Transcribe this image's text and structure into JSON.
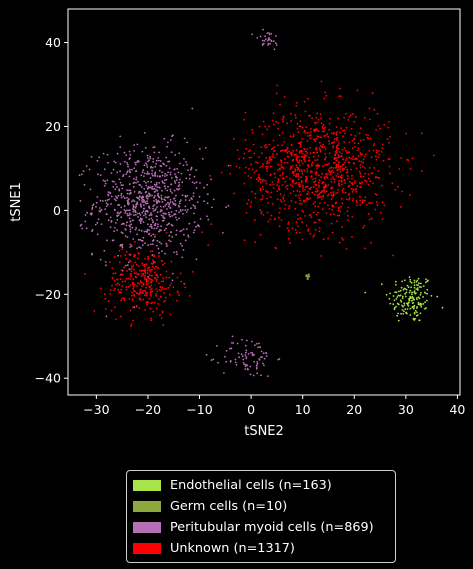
{
  "chart_data": {
    "type": "scatter",
    "title": "",
    "xlabel": "tSNE2",
    "ylabel": "tSNE1",
    "xlim": [
      -35.5,
      40.5
    ],
    "ylim": [
      -44,
      48
    ],
    "xticks": [
      -30,
      -20,
      -10,
      0,
      10,
      20,
      30,
      40
    ],
    "yticks": [
      -40,
      -20,
      0,
      20,
      40
    ],
    "grid": false,
    "legend_position": "below",
    "series": [
      {
        "name": "Endothelial cells (n=163)",
        "color": "#a8e34a",
        "count": 163,
        "clusters": [
          {
            "cx": 31,
            "cy": -21,
            "sx": 2.2,
            "sy": 3.0,
            "n": 163
          }
        ]
      },
      {
        "name": "Germ cells (n=10)",
        "color": "#8fa83c",
        "count": 10,
        "clusters": [
          {
            "cx": 11,
            "cy": -15.8,
            "sx": 0.2,
            "sy": 0.4,
            "n": 10
          }
        ]
      },
      {
        "name": "Peritubular myoid cells (n=869)",
        "color": "#b76fb5",
        "count": 869,
        "clusters": [
          {
            "cx": -20,
            "cy": 2,
            "sx": 5.2,
            "sy": 6.5,
            "n": 760
          },
          {
            "cx": -0.5,
            "cy": -35,
            "sx": 2.6,
            "sy": 2.4,
            "n": 80
          },
          {
            "cx": 3,
            "cy": 40.5,
            "sx": 1.4,
            "sy": 1.3,
            "n": 29
          }
        ]
      },
      {
        "name": "Unknown (n=1317)",
        "color": "#ff0000",
        "count": 1317,
        "clusters": [
          {
            "cx": 13,
            "cy": 10,
            "sx": 7.0,
            "sy": 7.2,
            "n": 1000
          },
          {
            "cx": -21,
            "cy": -17,
            "sx": 3.5,
            "sy": 4.0,
            "n": 317
          }
        ]
      }
    ]
  },
  "legend": {
    "items": [
      {
        "label": "Endothelial cells (n=163)",
        "color": "#a8e34a"
      },
      {
        "label": "Germ cells (n=10)",
        "color": "#8fa83c"
      },
      {
        "label": "Peritubular myoid cells (n=869)",
        "color": "#b76fb5"
      },
      {
        "label": "Unknown (n=1317)",
        "color": "#ff0000"
      }
    ]
  }
}
